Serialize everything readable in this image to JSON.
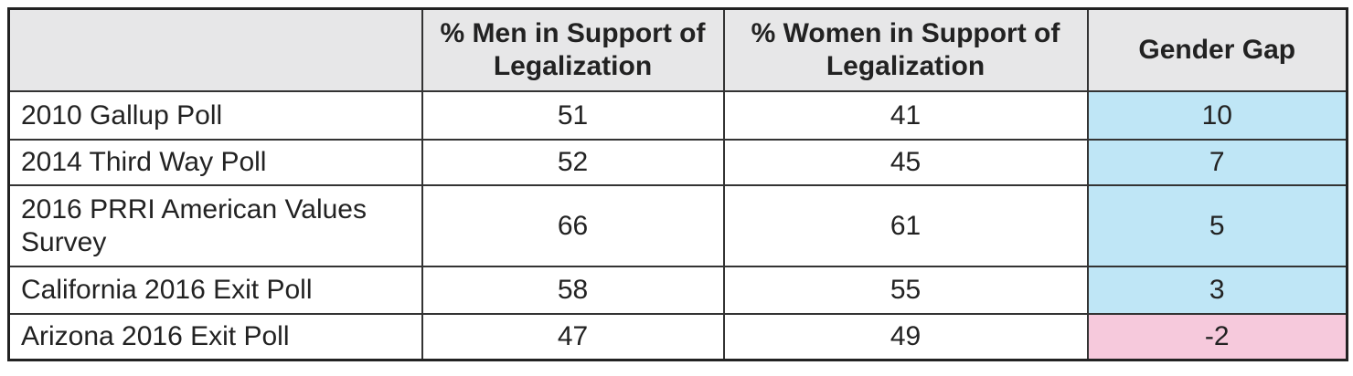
{
  "table": {
    "header": [
      "",
      "% Men in Support of Legalization",
      "% Women in Support of Legalization",
      "Gender Gap"
    ],
    "rows": [
      [
        "2010 Gallup Poll",
        51,
        41,
        10
      ],
      [
        "2014 Third Way Poll",
        52,
        45,
        7
      ],
      [
        "2016 PRRI American Values Survey",
        66,
        61,
        5
      ],
      [
        "California 2016 Exit Poll",
        58,
        55,
        3
      ],
      [
        "Arizona 2016 Exit Poll",
        47,
        49,
        -2
      ]
    ],
    "gap_colors": {
      "positive": "#bfe6f6",
      "negative": "#f6c9dc"
    }
  }
}
